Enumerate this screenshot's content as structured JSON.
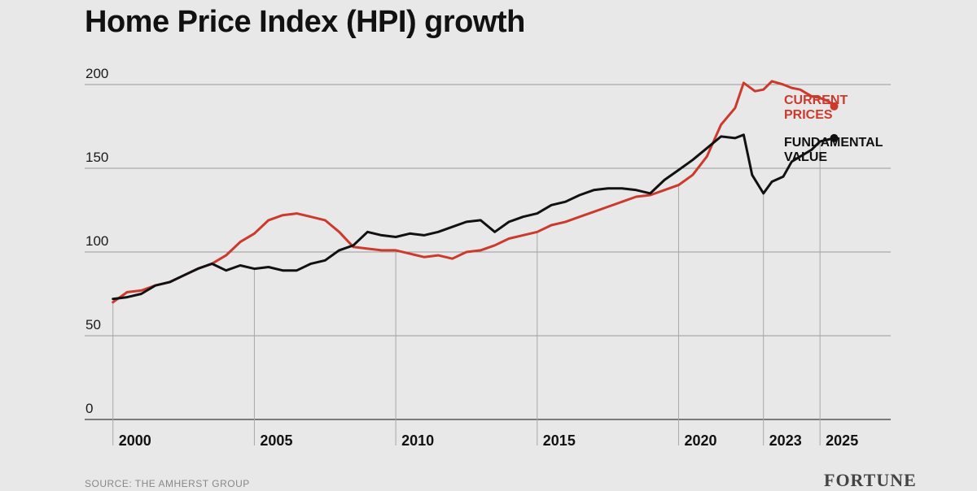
{
  "title": "Home Price Index (HPI) growth",
  "source": "SOURCE: THE AMHERST GROUP",
  "logo": "FORTUNE",
  "colors": {
    "current": "#cc3a2e",
    "fundamental": "#111111",
    "grid": "#9a9a9a",
    "background": "#e8e8e8"
  },
  "chart_data": {
    "type": "line",
    "title": "Home Price Index (HPI) growth",
    "xlabel": "",
    "ylabel": "",
    "ylim": [
      0,
      200
    ],
    "xlim": [
      1999.0,
      2027.5
    ],
    "yticks": [
      0,
      50,
      100,
      150,
      200
    ],
    "xticks": [
      2000,
      2005,
      2010,
      2015,
      2020,
      2023,
      2025
    ],
    "xtick_labels": [
      "2000",
      "2005",
      "2010",
      "2015",
      "2020",
      "2023",
      "2025"
    ],
    "grid": true,
    "series": [
      {
        "name": "CURRENT PRICES",
        "label_lines": [
          "CURRENT",
          "PRICES"
        ],
        "color": "#cc3a2e",
        "points": [
          [
            2000.0,
            70
          ],
          [
            2000.5,
            76
          ],
          [
            2001.0,
            77
          ],
          [
            2001.5,
            80
          ],
          [
            2002.0,
            82
          ],
          [
            2002.5,
            86
          ],
          [
            2003.0,
            90
          ],
          [
            2003.5,
            93
          ],
          [
            2004.0,
            98
          ],
          [
            2004.5,
            106
          ],
          [
            2005.0,
            111
          ],
          [
            2005.5,
            119
          ],
          [
            2006.0,
            122
          ],
          [
            2006.5,
            123
          ],
          [
            2007.0,
            121
          ],
          [
            2007.5,
            119
          ],
          [
            2008.0,
            112
          ],
          [
            2008.5,
            103
          ],
          [
            2009.0,
            102
          ],
          [
            2009.5,
            101
          ],
          [
            2010.0,
            101
          ],
          [
            2010.5,
            99
          ],
          [
            2011.0,
            97
          ],
          [
            2011.5,
            98
          ],
          [
            2012.0,
            96
          ],
          [
            2012.5,
            100
          ],
          [
            2013.0,
            101
          ],
          [
            2013.5,
            104
          ],
          [
            2014.0,
            108
          ],
          [
            2014.5,
            110
          ],
          [
            2015.0,
            112
          ],
          [
            2015.5,
            116
          ],
          [
            2016.0,
            118
          ],
          [
            2016.5,
            121
          ],
          [
            2017.0,
            124
          ],
          [
            2017.5,
            127
          ],
          [
            2018.0,
            130
          ],
          [
            2018.5,
            133
          ],
          [
            2019.0,
            134
          ],
          [
            2019.5,
            137
          ],
          [
            2020.0,
            140
          ],
          [
            2020.5,
            146
          ],
          [
            2021.0,
            157
          ],
          [
            2021.5,
            176
          ],
          [
            2022.0,
            186
          ],
          [
            2022.3,
            201
          ],
          [
            2022.7,
            196
          ],
          [
            2023.0,
            197
          ],
          [
            2023.3,
            202
          ],
          [
            2023.7,
            200
          ],
          [
            2024.0,
            198
          ],
          [
            2024.3,
            197
          ],
          [
            2024.7,
            193
          ],
          [
            2025.0,
            192
          ],
          [
            2025.3,
            190
          ],
          [
            2025.5,
            187
          ]
        ]
      },
      {
        "name": "FUNDAMENTAL VALUE",
        "label_lines": [
          "FUNDAMENTAL",
          "VALUE"
        ],
        "color": "#111111",
        "points": [
          [
            2000.0,
            72
          ],
          [
            2000.5,
            73
          ],
          [
            2001.0,
            75
          ],
          [
            2001.5,
            80
          ],
          [
            2002.0,
            82
          ],
          [
            2002.5,
            86
          ],
          [
            2003.0,
            90
          ],
          [
            2003.5,
            93
          ],
          [
            2004.0,
            89
          ],
          [
            2004.5,
            92
          ],
          [
            2005.0,
            90
          ],
          [
            2005.5,
            91
          ],
          [
            2006.0,
            89
          ],
          [
            2006.5,
            89
          ],
          [
            2007.0,
            93
          ],
          [
            2007.5,
            95
          ],
          [
            2008.0,
            101
          ],
          [
            2008.5,
            104
          ],
          [
            2009.0,
            112
          ],
          [
            2009.5,
            110
          ],
          [
            2010.0,
            109
          ],
          [
            2010.5,
            111
          ],
          [
            2011.0,
            110
          ],
          [
            2011.5,
            112
          ],
          [
            2012.0,
            115
          ],
          [
            2012.5,
            118
          ],
          [
            2013.0,
            119
          ],
          [
            2013.5,
            112
          ],
          [
            2014.0,
            118
          ],
          [
            2014.5,
            121
          ],
          [
            2015.0,
            123
          ],
          [
            2015.5,
            128
          ],
          [
            2016.0,
            130
          ],
          [
            2016.5,
            134
          ],
          [
            2017.0,
            137
          ],
          [
            2017.5,
            138
          ],
          [
            2018.0,
            138
          ],
          [
            2018.5,
            137
          ],
          [
            2019.0,
            135
          ],
          [
            2019.5,
            143
          ],
          [
            2020.0,
            149
          ],
          [
            2020.5,
            155
          ],
          [
            2021.0,
            162
          ],
          [
            2021.5,
            169
          ],
          [
            2022.0,
            168
          ],
          [
            2022.3,
            170
          ],
          [
            2022.6,
            146
          ],
          [
            2023.0,
            135
          ],
          [
            2023.3,
            142
          ],
          [
            2023.7,
            145
          ],
          [
            2024.0,
            154
          ],
          [
            2024.3,
            157
          ],
          [
            2024.7,
            161
          ],
          [
            2025.0,
            166
          ],
          [
            2025.5,
            168
          ]
        ]
      }
    ]
  }
}
